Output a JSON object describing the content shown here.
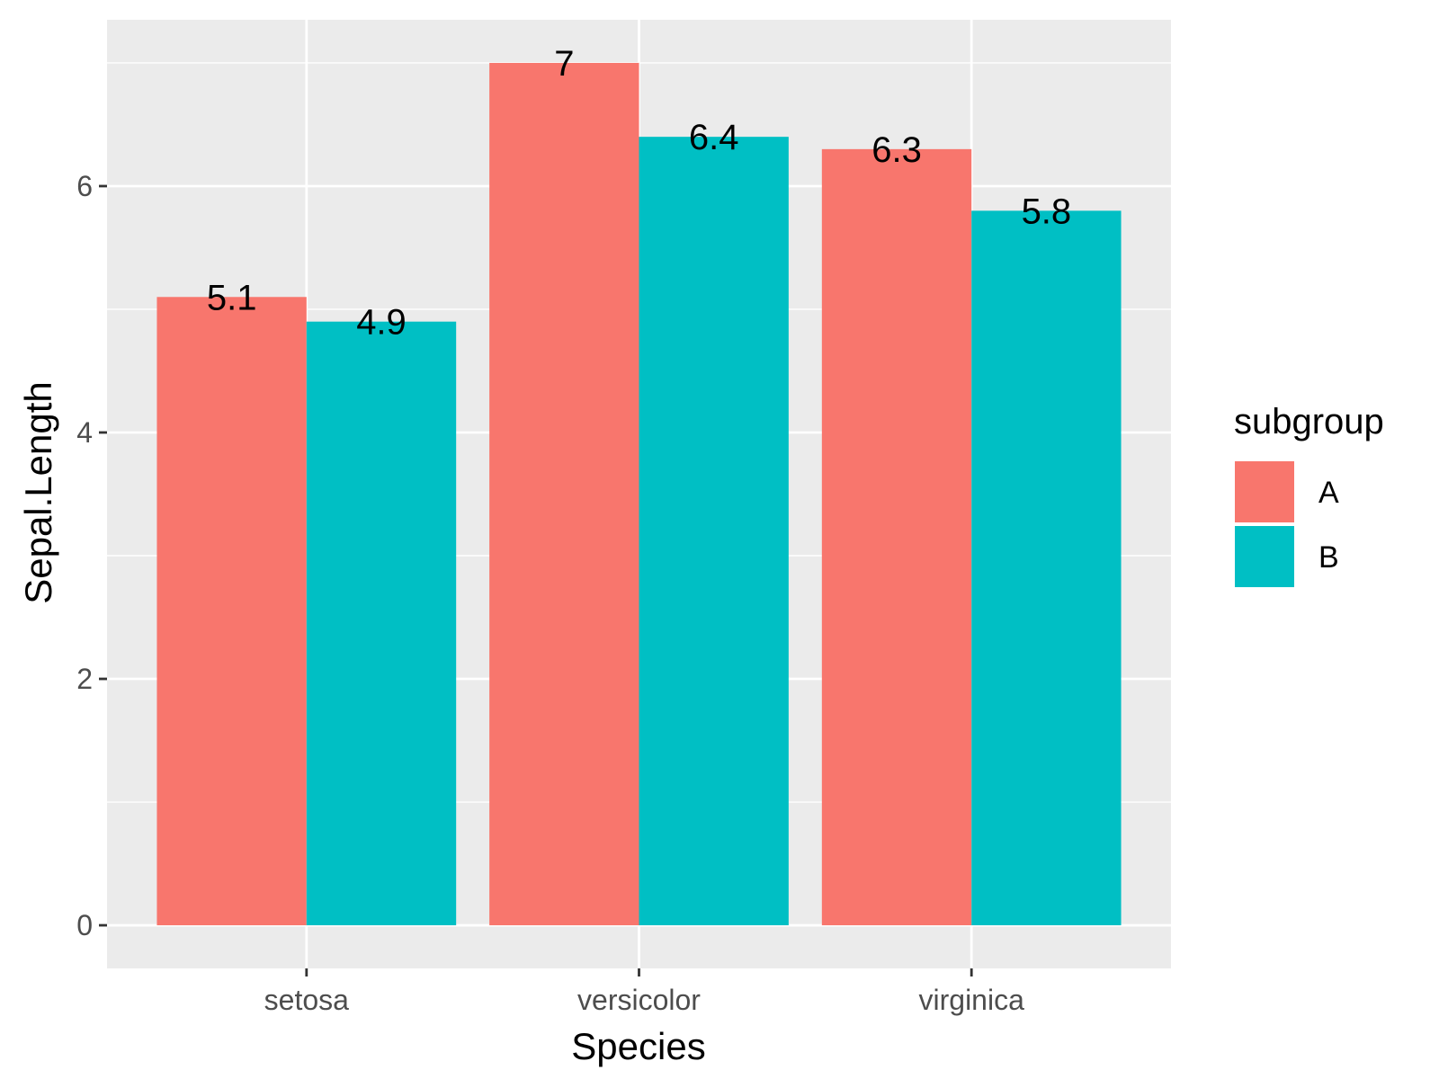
{
  "chart_data": {
    "type": "bar",
    "categories": [
      "setosa",
      "versicolor",
      "virginica"
    ],
    "series": [
      {
        "name": "A",
        "values": [
          5.1,
          7,
          6.3
        ],
        "labels": [
          "5.1",
          "7",
          "6.3"
        ],
        "color": "#F8766D"
      },
      {
        "name": "B",
        "values": [
          4.9,
          6.4,
          5.8
        ],
        "labels": [
          "4.9",
          "6.4",
          "5.8"
        ],
        "color": "#00BFC4"
      }
    ],
    "title": "",
    "xlabel": "Species",
    "ylabel": "Sepal.Length",
    "ylim": [
      -0.35,
      7.35
    ],
    "yticks": [
      0,
      2,
      4,
      6
    ],
    "ytick_labels": [
      "0",
      "2",
      "4",
      "6"
    ],
    "grid": true,
    "panel_color": "#EBEBEB",
    "legend": {
      "title": "subgroup",
      "placement": "right",
      "entries": [
        "A",
        "B"
      ]
    }
  }
}
